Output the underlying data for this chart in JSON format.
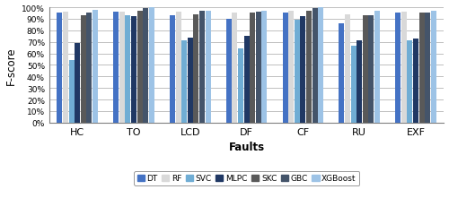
{
  "categories": [
    "HC",
    "TO",
    "LCD",
    "DF",
    "CF",
    "RU",
    "EXF"
  ],
  "models": [
    "DT",
    "RF",
    "SVC",
    "MLPC",
    "SKC",
    "GBC",
    "XGBoost"
  ],
  "colors": [
    "#4472C4",
    "#D9D9D9",
    "#70ADD4",
    "#203864",
    "#595959",
    "#44546A",
    "#9DC3E6"
  ],
  "values": {
    "DT": [
      0.95,
      0.96,
      0.93,
      0.9,
      0.95,
      0.86,
      0.95
    ],
    "RF": [
      0.96,
      0.96,
      0.96,
      0.95,
      0.97,
      0.94,
      0.96
    ],
    "SVC": [
      0.54,
      0.93,
      0.71,
      0.64,
      0.89,
      0.67,
      0.71
    ],
    "MLPC": [
      0.69,
      0.92,
      0.74,
      0.75,
      0.92,
      0.71,
      0.73
    ],
    "SKC": [
      0.93,
      0.97,
      0.94,
      0.95,
      0.97,
      0.93,
      0.95
    ],
    "GBC": [
      0.95,
      0.99,
      0.97,
      0.96,
      0.99,
      0.93,
      0.95
    ],
    "XGBoost": [
      0.98,
      1.0,
      0.97,
      0.97,
      1.0,
      0.97,
      0.97
    ]
  },
  "ylabel": "F-score",
  "xlabel": "Faults",
  "ylim": [
    0,
    1.0
  ],
  "yticks": [
    0.0,
    0.1,
    0.2,
    0.3,
    0.4,
    0.5,
    0.6,
    0.7,
    0.8,
    0.9,
    1.0
  ],
  "ytick_labels": [
    "0%",
    "10%",
    "20%",
    "30%",
    "40%",
    "50%",
    "60%",
    "70%",
    "80%",
    "90%",
    "100%"
  ],
  "bar_width": 0.105,
  "figsize": [
    5.0,
    2.51
  ],
  "dpi": 100,
  "grid_color": "#C0C0C0",
  "background_color": "#FFFFFF"
}
